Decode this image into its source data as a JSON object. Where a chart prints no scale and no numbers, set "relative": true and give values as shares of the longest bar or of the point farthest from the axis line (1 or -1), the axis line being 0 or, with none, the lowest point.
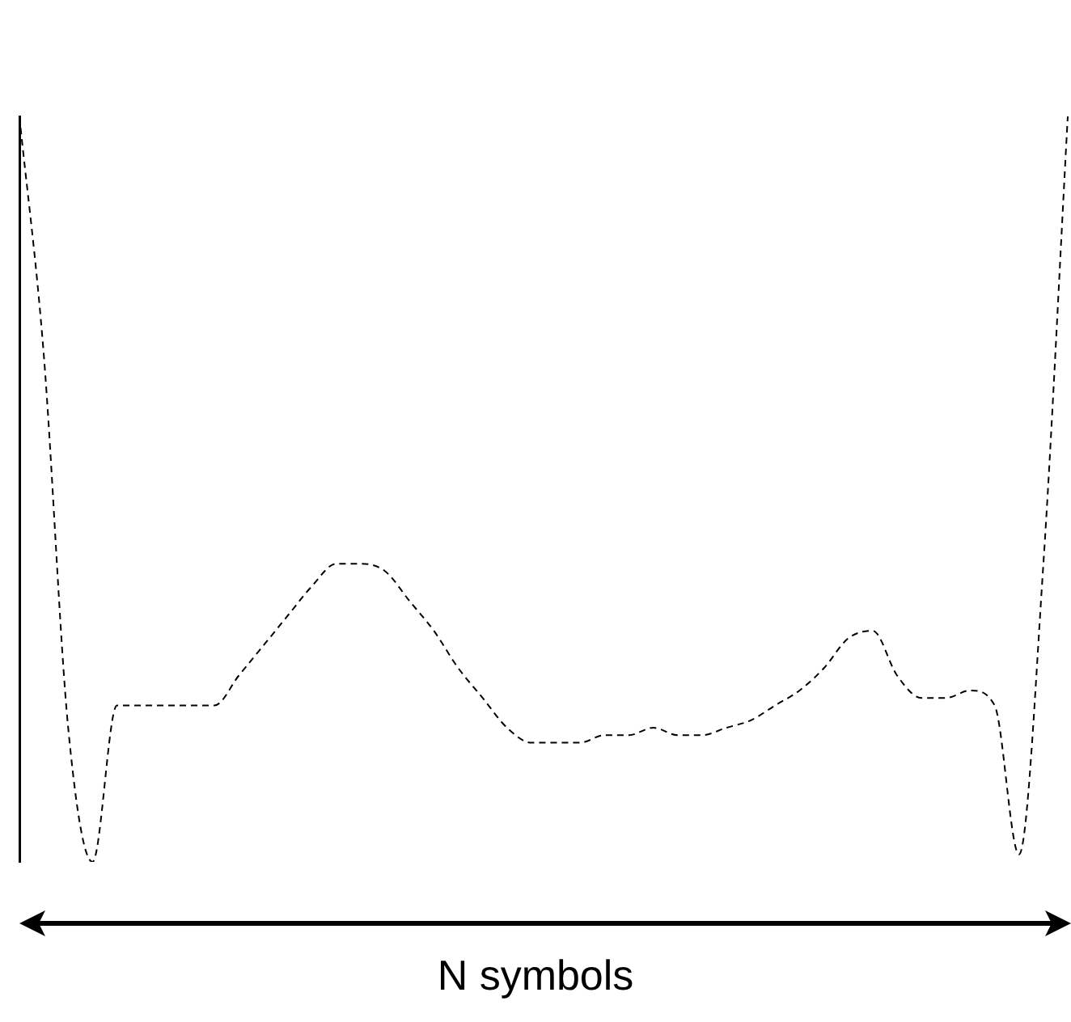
{
  "chart_data": {
    "type": "line",
    "xlabel": "N symbols",
    "relative": true,
    "color": "#000000",
    "line_style": "dashed",
    "categories": [
      null,
      null,
      null,
      null,
      null,
      null,
      null,
      null,
      null,
      null,
      null,
      null,
      null,
      null,
      null,
      null,
      null,
      null,
      null,
      null,
      null,
      null,
      null,
      null,
      null,
      null,
      null,
      null,
      null,
      null,
      null,
      null,
      null,
      null,
      null,
      null,
      null,
      null,
      null,
      null,
      null,
      null,
      null,
      null
    ],
    "values": [
      1.0,
      0.68,
      0.18,
      0,
      0.21,
      0.21,
      0.21,
      0.21,
      0.21,
      0.25,
      0.29,
      0.33,
      0.37,
      0.4,
      0.4,
      0.39,
      0.35,
      0.31,
      0.26,
      0.22,
      0.18,
      0.16,
      0.16,
      0.16,
      0.17,
      0.17,
      0.18,
      0.17,
      0.17,
      0.18,
      0.19,
      0.21,
      0.23,
      0.26,
      0.3,
      0.31,
      0.25,
      0.22,
      0.22,
      0.23,
      0.21,
      0.01,
      0.4,
      1.0
    ]
  }
}
